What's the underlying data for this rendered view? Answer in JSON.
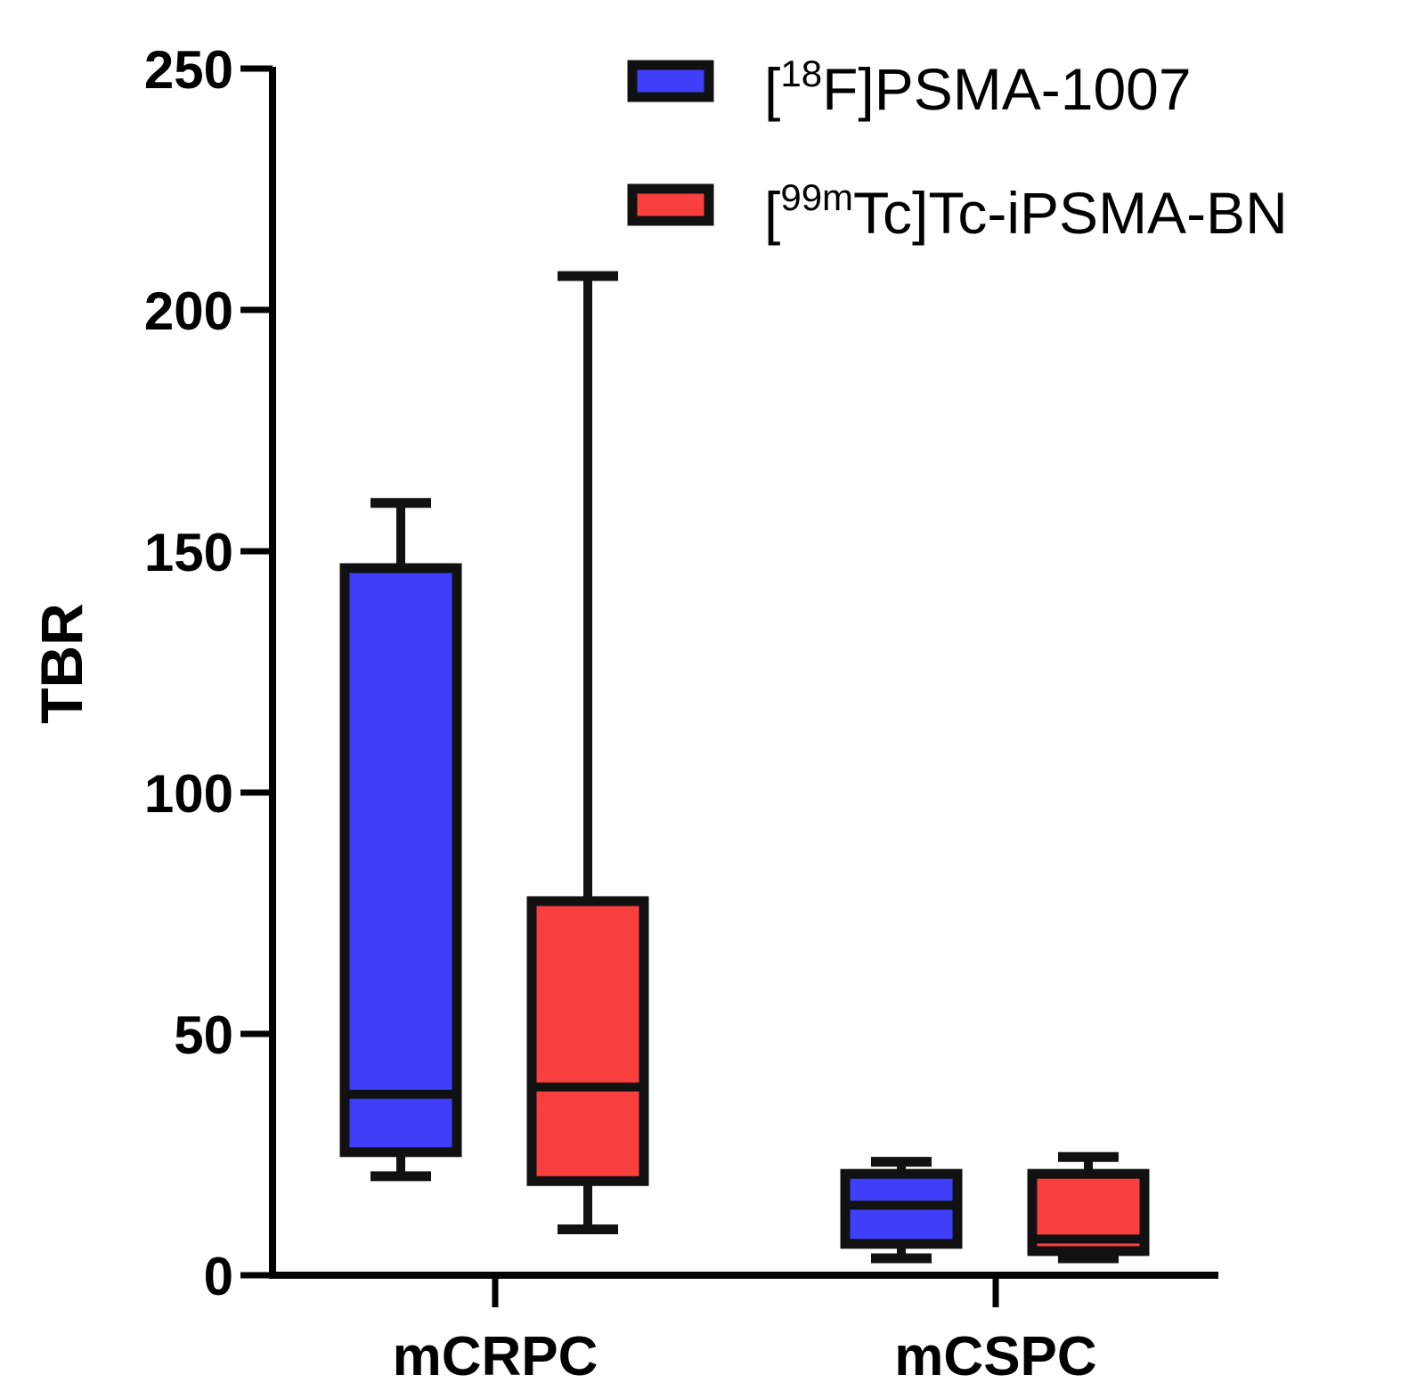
{
  "chart_data": {
    "type": "box",
    "ylabel": "TBR",
    "xlabel": "",
    "ylim": [
      0,
      250
    ],
    "yticks": [
      "0",
      "50",
      "100",
      "150",
      "200",
      "250"
    ],
    "categories": [
      "mCRPC",
      "mCSPC"
    ],
    "legend_position": "top-right",
    "series": [
      {
        "name_prefix": "[",
        "name_sup": "18",
        "name_main": "F]PSMA-1007",
        "color": "#3f3ffa",
        "boxes": [
          {
            "category": "mCRPC",
            "min": 20.5,
            "q1": 25.5,
            "median": 37.5,
            "q3": 146.5,
            "max": 160
          },
          {
            "category": "mCSPC",
            "min": 3.5,
            "q1": 6.5,
            "median": 14.5,
            "q3": 21,
            "max": 23.5
          }
        ]
      },
      {
        "name_prefix": "[",
        "name_sup": "99m",
        "name_main": "Tc]Tc-iPSMA-BN",
        "color": "#fa3f3f",
        "boxes": [
          {
            "category": "mCRPC",
            "min": 9.5,
            "q1": 19.5,
            "median": 39,
            "q3": 77.5,
            "max": 207
          },
          {
            "category": "mCSPC",
            "min": 3.5,
            "q1": 5,
            "median": 7.5,
            "q3": 21,
            "max": 24.5
          }
        ]
      }
    ]
  }
}
